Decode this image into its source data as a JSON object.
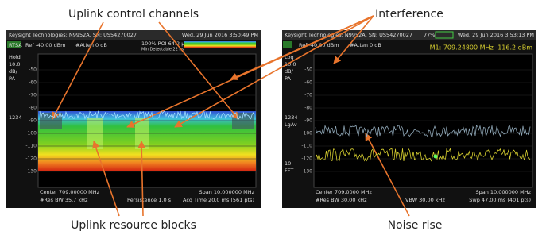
{
  "annotations": {
    "uplink_control_channels": "Uplink control channels",
    "interference": "Interference",
    "uplink_resource_blocks": "Uplink resource blocks",
    "noise_rise": "Noise rise"
  },
  "left_screen": {
    "header": "Keysight Technologies: N9952A, SN: US54270027",
    "datetime": "Wed, 29 Jun 2016 3:50:49 PM",
    "mode": "RTSA",
    "ref": "Ref -40.00 dBm",
    "atten": "#Atten 0 dB",
    "poi": "100% POI 64.2 µs",
    "min_detectable": "Min Detectable 22 ns",
    "side": [
      "Hold",
      "10.0",
      "dB/",
      "PA",
      "1234"
    ],
    "yticks": [
      "-50",
      "-60",
      "-70",
      "-80",
      "-90",
      "-100",
      "-110",
      "-120",
      "-130"
    ],
    "center": "Center 709.00000 MHz",
    "span": "Span 10.000000 MHz",
    "res_bw": "#Res BW 35.7 kHz",
    "persistence": "Persistence 1.0  s",
    "acq_time": "Acq Time 20.0 ms (561 pts)"
  },
  "right_screen": {
    "header": "Keysight Technologies: N9952A, SN: US54270027",
    "battery": "77%",
    "datetime": "Wed, 29 Jun 2016 3:53:13 PM",
    "ref": "Ref -40.00 dBm",
    "atten": "#Atten 0 dB",
    "marker": "M1:  709.24800 MHz  -116.2 dBm",
    "side": [
      "Log",
      "10.0",
      "dB/",
      "PA",
      "1234",
      "LgAv",
      "10",
      "FFT"
    ],
    "yticks": [
      "-50",
      "-60",
      "-70",
      "-80",
      "-90",
      "-100",
      "-110",
      "-120",
      "-130"
    ],
    "center": "Center 709.0000 MHz",
    "span": "Span 10.000000 MHz",
    "res_bw": "#Res BW 30.00 kHz",
    "vbw": "VBW 30.00 kHz",
    "sweep": "Swp 47.00 ms (401 pts)"
  }
}
